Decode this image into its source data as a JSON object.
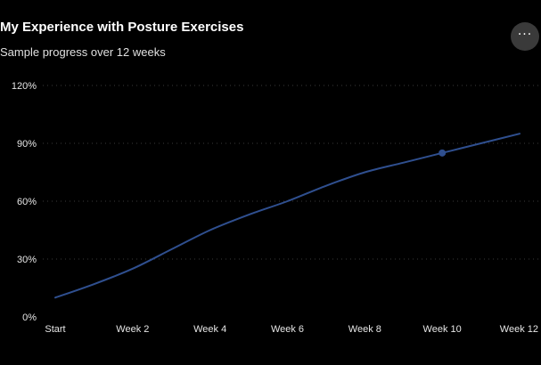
{
  "header": {
    "title": "My Experience with Posture Exercises",
    "subtitle": "Sample progress over 12 weeks",
    "more_label": "···"
  },
  "colors": {
    "background": "#000000",
    "line": "#2f4f8f",
    "grid": "#3a3a3a",
    "text": "#e6e6e6"
  },
  "chart_data": {
    "type": "line",
    "title": "My Experience with Posture Exercises",
    "subtitle": "Sample progress over 12 weeks",
    "xlabel": "",
    "ylabel": "",
    "categories": [
      "Start",
      "Week 2",
      "Week 4",
      "Week 6",
      "Week 8",
      "Week 10",
      "Week 12"
    ],
    "x": [
      0,
      2,
      4,
      6,
      8,
      10,
      12
    ],
    "ylim": [
      0,
      120
    ],
    "yticks": [
      0,
      30,
      60,
      90,
      120
    ],
    "ytick_labels": [
      "0%",
      "30%",
      "60%",
      "90%",
      "120%"
    ],
    "grid": true,
    "series": [
      {
        "x": [
          0,
          1,
          2,
          3,
          4,
          5,
          6,
          7,
          8,
          9,
          10,
          11,
          12
        ],
        "values": [
          10,
          17,
          25,
          35,
          45,
          53,
          60,
          68,
          75,
          80,
          85,
          90,
          95
        ]
      }
    ],
    "highlight_point": {
      "x": 10,
      "value": 85
    }
  }
}
